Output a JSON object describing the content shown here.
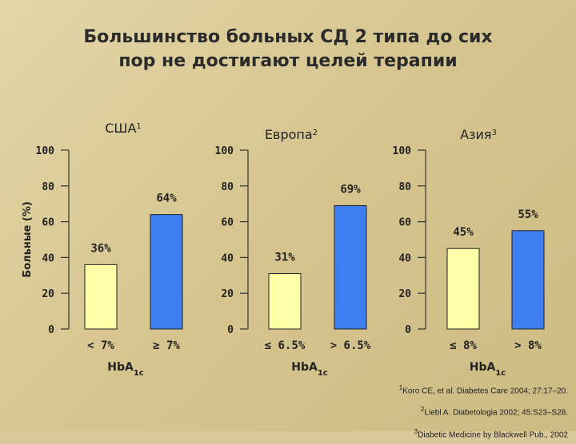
{
  "title_lines": [
    "Большинство больных СД 2 типа до сих",
    "пор не достигают целей терапии"
  ],
  "ylabel": "Больные (%)",
  "chart_data": [
    {
      "type": "bar",
      "title": "США",
      "title_sup": "1",
      "categories": [
        "< 7%",
        "≥ 7%"
      ],
      "values": [
        36,
        64
      ],
      "value_labels": [
        "36%",
        "64%"
      ],
      "xlabel": "HbA",
      "xlabel_sub": "1c",
      "ylim": [
        0,
        100
      ],
      "yticks": [
        "0",
        "20",
        "40",
        "60",
        "80",
        "100"
      ]
    },
    {
      "type": "bar",
      "title": "Европа",
      "title_sup": "2",
      "categories": [
        "≤ 6.5%",
        "> 6.5%"
      ],
      "values": [
        31,
        69
      ],
      "value_labels": [
        "31%",
        "69%"
      ],
      "xlabel": "HbA",
      "xlabel_sub": "1c",
      "ylim": [
        0,
        100
      ],
      "yticks": [
        "0",
        "20",
        "40",
        "60",
        "80",
        "100"
      ]
    },
    {
      "type": "bar",
      "title": "Азия",
      "title_sup": "3",
      "categories": [
        "≤ 8%",
        "> 8%"
      ],
      "values": [
        45,
        55
      ],
      "value_labels": [
        "45%",
        "55%"
      ],
      "xlabel": "HbA",
      "xlabel_sub": "1c",
      "ylim": [
        0,
        100
      ],
      "yticks": [
        "0",
        "20",
        "40",
        "60",
        "80",
        "100"
      ]
    }
  ],
  "bar_colors": [
    "#ffffa8",
    "#3d7ef0"
  ],
  "references": [
    {
      "sup": "1",
      "text": "Koro CE, et al. Diabetes Care 2004; 27:17–20."
    },
    {
      "sup": "2",
      "text": "Liebl A. Diabetologia 2002; 45:S23–S28."
    },
    {
      "sup": "3",
      "text": "Diabetic Medicine by Blackwell Pub., 2002"
    }
  ]
}
